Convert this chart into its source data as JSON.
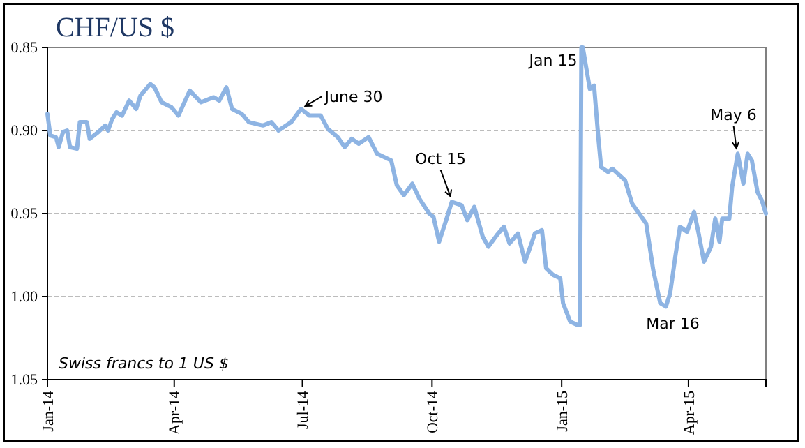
{
  "chart_data": {
    "type": "line",
    "title": "CHF/US $",
    "x": [
      "2014-01-01",
      "2014-01-03",
      "2014-01-07",
      "2014-01-09",
      "2014-01-12",
      "2014-01-15",
      "2014-01-17",
      "2014-01-22",
      "2014-01-24",
      "2014-01-29",
      "2014-01-31",
      "2014-02-06",
      "2014-02-11",
      "2014-02-13",
      "2014-02-16",
      "2014-02-19",
      "2014-02-23",
      "2014-02-28",
      "2014-03-05",
      "2014-03-08",
      "2014-03-15",
      "2014-03-18",
      "2014-03-23",
      "2014-03-30",
      "2014-04-04",
      "2014-04-12",
      "2014-04-20",
      "2014-04-29",
      "2014-05-03",
      "2014-05-08",
      "2014-05-12",
      "2014-05-19",
      "2014-05-24",
      "2014-06-03",
      "2014-06-09",
      "2014-06-14",
      "2014-06-23",
      "2014-06-30",
      "2014-07-06",
      "2014-07-14",
      "2014-07-19",
      "2014-07-26",
      "2014-07-31",
      "2014-08-05",
      "2014-08-10",
      "2014-08-17",
      "2014-08-23",
      "2014-09-02",
      "2014-09-06",
      "2014-09-11",
      "2014-09-17",
      "2014-09-22",
      "2014-09-29",
      "2014-10-02",
      "2014-10-06",
      "2014-10-11",
      "2014-10-15",
      "2014-10-22",
      "2014-10-26",
      "2014-10-31",
      "2014-11-06",
      "2014-11-10",
      "2014-11-16",
      "2014-11-21",
      "2014-11-25",
      "2014-12-01",
      "2014-12-06",
      "2014-12-11",
      "2014-12-13",
      "2014-12-18",
      "2014-12-21",
      "2014-12-26",
      "2014-12-31",
      "2015-01-02",
      "2015-01-07",
      "2015-01-12",
      "2015-01-14",
      "2015-01-15",
      "2015-01-16",
      "2015-01-21",
      "2015-01-24",
      "2015-01-27",
      "2015-01-29",
      "2015-02-03",
      "2015-02-06",
      "2015-02-15",
      "2015-02-20",
      "2015-02-25",
      "2015-03-02",
      "2015-03-07",
      "2015-03-12",
      "2015-03-16",
      "2015-03-19",
      "2015-03-23",
      "2015-03-26",
      "2015-03-31",
      "2015-04-05",
      "2015-04-08",
      "2015-04-12",
      "2015-04-17",
      "2015-04-20",
      "2015-04-23",
      "2015-04-25",
      "2015-04-30",
      "2015-05-02",
      "2015-05-06",
      "2015-05-10",
      "2015-05-13",
      "2015-05-16",
      "2015-05-20",
      "2015-05-23",
      "2015-05-26"
    ],
    "series": [
      {
        "color": "#8eb4e3",
        "values": [
          0.89,
          0.903,
          0.904,
          0.91,
          0.901,
          0.9,
          0.91,
          0.911,
          0.895,
          0.895,
          0.905,
          0.901,
          0.897,
          0.9,
          0.893,
          0.889,
          0.891,
          0.882,
          0.887,
          0.879,
          0.872,
          0.874,
          0.883,
          0.886,
          0.891,
          0.876,
          0.883,
          0.88,
          0.882,
          0.874,
          0.887,
          0.89,
          0.895,
          0.897,
          0.895,
          0.9,
          0.895,
          0.887,
          0.891,
          0.891,
          0.899,
          0.904,
          0.91,
          0.905,
          0.908,
          0.904,
          0.914,
          0.918,
          0.933,
          0.939,
          0.932,
          0.941,
          0.95,
          0.952,
          0.967,
          0.954,
          0.943,
          0.945,
          0.954,
          0.946,
          0.964,
          0.97,
          0.963,
          0.958,
          0.968,
          0.962,
          0.979,
          0.967,
          0.962,
          0.96,
          0.983,
          0.987,
          0.989,
          1.004,
          1.015,
          1.017,
          1.017,
          0.85,
          0.85,
          0.875,
          0.873,
          0.904,
          0.922,
          0.925,
          0.923,
          0.93,
          0.944,
          0.95,
          0.956,
          0.984,
          1.004,
          1.006,
          0.998,
          0.974,
          0.958,
          0.961,
          0.949,
          0.961,
          0.979,
          0.97,
          0.953,
          0.967,
          0.953,
          0.953,
          0.934,
          0.914,
          0.932,
          0.914,
          0.918,
          0.937,
          0.942,
          0.95
        ]
      }
    ],
    "xlim": [
      "2014-01-01",
      "2015-05-26"
    ],
    "xticks": [
      {
        "value": "2014-01-01",
        "label": "Jan-14"
      },
      {
        "value": "2014-04-01",
        "label": "Apr-14"
      },
      {
        "value": "2014-07-01",
        "label": "Jul-14"
      },
      {
        "value": "2014-10-01",
        "label": "Oct-14"
      },
      {
        "value": "2015-01-01",
        "label": "Jan-15"
      },
      {
        "value": "2015-04-01",
        "label": "Apr-15"
      }
    ],
    "ylim": [
      1.05,
      0.85
    ],
    "yticks": [
      {
        "value": 0.85,
        "label": "0.85"
      },
      {
        "value": 0.9,
        "label": "0.90"
      },
      {
        "value": 0.95,
        "label": "0.95"
      },
      {
        "value": 1.0,
        "label": "1.00"
      },
      {
        "value": 1.05,
        "label": "1.05"
      }
    ],
    "grid": "y",
    "marker": "none",
    "line_style": "solid",
    "annotations": [
      {
        "text": "June 30",
        "x": "2014-06-30",
        "y": 0.887
      },
      {
        "text": "Oct 15",
        "x": "2014-10-15",
        "y": 0.943
      },
      {
        "text": "Jan 15",
        "x": "2015-01-15",
        "y": 0.85
      },
      {
        "text": "Mar 16",
        "x": "2015-03-16",
        "y": 1.006
      },
      {
        "text": "May 6",
        "x": "2015-05-06",
        "y": 0.914
      },
      "Swiss francs to 1 US $"
    ]
  }
}
